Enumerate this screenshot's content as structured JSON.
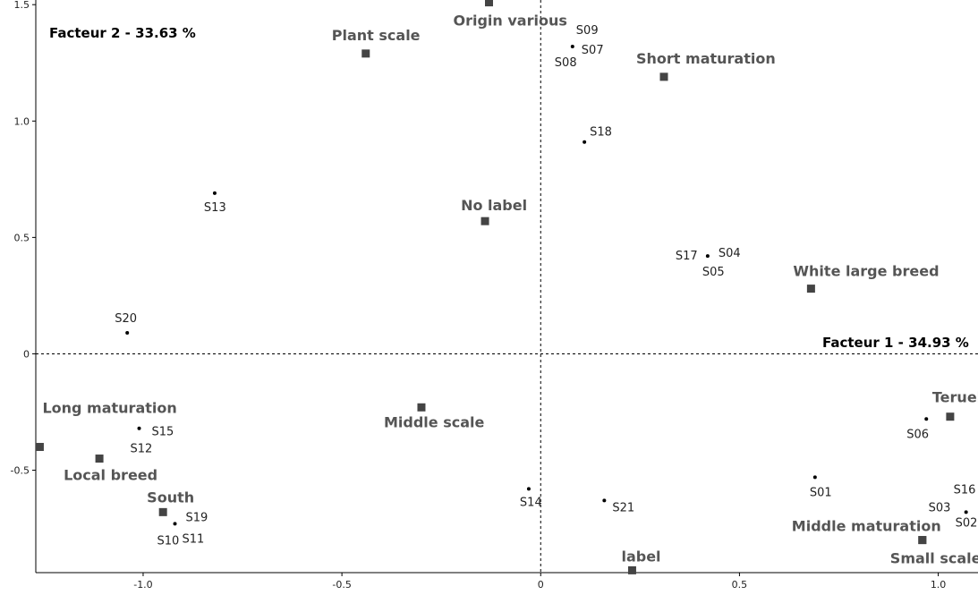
{
  "chart_data": {
    "type": "scatter",
    "factor_x_label": "Facteur 1  -  34.93 %",
    "factor_y_label": "Facteur 2  -  33.63 %",
    "xlim": [
      -1.27,
      1.1
    ],
    "ylim": [
      -0.94,
      1.52
    ],
    "x_ticks": [
      {
        "value": -1.0,
        "label": "-1.0"
      },
      {
        "value": -0.5,
        "label": "-0.5"
      },
      {
        "value": 0,
        "label": "0"
      },
      {
        "value": 0.5,
        "label": "0.5"
      },
      {
        "value": 1.0,
        "label": "1.0"
      }
    ],
    "y_ticks": [
      {
        "value": 1.5,
        "label": "1.5"
      },
      {
        "value": 1.0,
        "label": "1.0"
      },
      {
        "value": 0.5,
        "label": "0.5"
      },
      {
        "value": 0,
        "label": "0"
      },
      {
        "value": -0.5,
        "label": "-0.5"
      }
    ],
    "observations": [
      {
        "x": 0.08,
        "y": 1.32,
        "labels": [
          {
            "text": "S09",
            "dx": 4,
            "dy": -14
          },
          {
            "text": "S07",
            "dx": 10,
            "dy": 8
          },
          {
            "text": "S08",
            "dx": -20,
            "dy": 22
          }
        ]
      },
      {
        "x": 0.11,
        "y": 0.91,
        "labels": [
          {
            "text": "S18",
            "dx": 6,
            "dy": -7
          }
        ]
      },
      {
        "x": -0.82,
        "y": 0.69,
        "labels": [
          {
            "text": "S13",
            "dx": -12,
            "dy": 20
          }
        ]
      },
      {
        "x": 0.42,
        "y": 0.42,
        "labels": [
          {
            "text": "S17",
            "dx": -36,
            "dy": 4
          },
          {
            "text": "S04",
            "dx": 12,
            "dy": 1
          },
          {
            "text": "S05",
            "dx": -6,
            "dy": 22
          }
        ]
      },
      {
        "x": -1.04,
        "y": 0.09,
        "labels": [
          {
            "text": "S20",
            "dx": -14,
            "dy": -12
          }
        ]
      },
      {
        "x": -1.01,
        "y": -0.32,
        "labels": [
          {
            "text": "S15",
            "dx": 14,
            "dy": 8
          },
          {
            "text": "S12",
            "dx": -10,
            "dy": 27
          }
        ]
      },
      {
        "x": -0.92,
        "y": -0.73,
        "labels": [
          {
            "text": "S19",
            "dx": 12,
            "dy": -3
          },
          {
            "text": "S10",
            "dx": -20,
            "dy": 23
          },
          {
            "text": "S11",
            "dx": 8,
            "dy": 21
          }
        ]
      },
      {
        "x": -0.03,
        "y": -0.58,
        "labels": [
          {
            "text": "S14",
            "dx": -10,
            "dy": 19
          }
        ]
      },
      {
        "x": 0.16,
        "y": -0.63,
        "labels": [
          {
            "text": "S21",
            "dx": 9,
            "dy": 12
          }
        ]
      },
      {
        "x": 0.69,
        "y": -0.53,
        "labels": [
          {
            "text": "S01",
            "dx": -6,
            "dy": 21
          }
        ]
      },
      {
        "x": 0.97,
        "y": -0.28,
        "labels": [
          {
            "text": "S06",
            "dx": -22,
            "dy": 21
          }
        ]
      },
      {
        "x": 1.07,
        "y": -0.68,
        "labels": [
          {
            "text": "S16",
            "dx": -14,
            "dy": -21
          },
          {
            "text": "S03",
            "dx": -42,
            "dy": -1
          },
          {
            "text": "S02",
            "dx": -12,
            "dy": 16
          }
        ]
      }
    ],
    "modalities": [
      {
        "name": "Origin various",
        "x": -0.13,
        "y": 1.51,
        "dx": -40,
        "dy": 26
      },
      {
        "name": "Plant scale",
        "x": -0.44,
        "y": 1.29,
        "dx": -38,
        "dy": -15
      },
      {
        "name": "Short maturation",
        "x": 0.31,
        "y": 1.19,
        "dx": -31,
        "dy": -15
      },
      {
        "name": "No label",
        "x": -0.14,
        "y": 0.57,
        "dx": -27,
        "dy": -12
      },
      {
        "name": "White large breed",
        "x": 0.68,
        "y": 0.28,
        "dx": -20,
        "dy": -14
      },
      {
        "name": "Long maturation",
        "x": -1.26,
        "y": -0.4,
        "dx": 3,
        "dy": -38
      },
      {
        "name": "Middle scale",
        "x": -0.3,
        "y": -0.23,
        "dx": -42,
        "dy": 22
      },
      {
        "name": "Local breed",
        "x": -1.11,
        "y": -0.45,
        "dx": -40,
        "dy": 24
      },
      {
        "name": "South",
        "x": -0.95,
        "y": -0.68,
        "dx": -18,
        "dy": -11
      },
      {
        "name": "Teruel",
        "x": 1.03,
        "y": -0.27,
        "dx": -20,
        "dy": -16
      },
      {
        "name": "Middle maturation",
        "x": 0.96,
        "y": -0.8,
        "dx": -146,
        "dy": -10
      },
      {
        "name": "Small scale",
        "x": 0.96,
        "y": -0.8,
        "dx": -36,
        "dy": 26
      },
      {
        "name": "label",
        "x": 0.23,
        "y": -0.93,
        "dx": -12,
        "dy": -10
      }
    ]
  }
}
